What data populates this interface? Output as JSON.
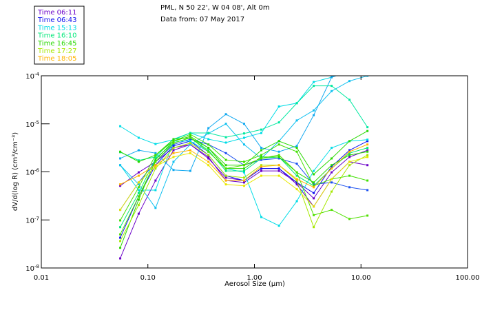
{
  "chart_data": {
    "type": "line",
    "title": "PML, N 50 22', W 04 08', Alt 0m",
    "subtitle": "Data from: 07 May 2017",
    "xlabel": "Aerosol Size (µm)",
    "ylabel": "dV/d(log R) (cm³/cm⁻³)",
    "xscale": "log",
    "yscale": "log",
    "xlim": [
      0.01,
      100
    ],
    "ylim": [
      1e-08,
      0.0001
    ],
    "x_ticks": [
      "0.01",
      "0.10",
      "1.00",
      "10.00",
      "100.00"
    ],
    "x_tick_values": [
      0.01,
      0.1,
      1,
      10,
      100
    ],
    "y_ticks": [
      {
        "base": "10",
        "exp": "-4",
        "value_log10": -4
      },
      {
        "base": "10",
        "exp": "-5",
        "value_log10": -5
      },
      {
        "base": "10",
        "exp": "-6",
        "value_log10": -6
      },
      {
        "base": "10",
        "exp": "-7",
        "value_log10": -7
      },
      {
        "base": "10",
        "exp": "-8",
        "value_log10": -8
      }
    ],
    "legend_position": "top-left, outside plot",
    "legend": [
      {
        "label": "Time 06:11",
        "color": "#6a00c8"
      },
      {
        "label": "Time 06:43",
        "color": "#1010f0"
      },
      {
        "label": "Time 15:13",
        "color": "#00dce6"
      },
      {
        "label": "Time 16:10",
        "color": "#00e87a"
      },
      {
        "label": "Time 16:45",
        "color": "#28d800"
      },
      {
        "label": "Time 17:27",
        "color": "#a6e800"
      },
      {
        "label": "Time 18:05",
        "color": "#ffb400"
      }
    ],
    "x": [
      0.055,
      0.082,
      0.118,
      0.174,
      0.25,
      0.37,
      0.54,
      0.8,
      1.16,
      1.7,
      2.5,
      3.6,
      5.3,
      7.8,
      11.5
    ],
    "series_note": "values given as log10 of dV/d(log R)",
    "series": [
      {
        "name": "06:11 a",
        "color": "#6a00c8",
        "log10_values": [
          -7.8,
          -6.87,
          -6.18,
          -5.55,
          -5.43,
          -5.69,
          -6.18,
          -6.22,
          -5.98,
          -5.98,
          -6.22,
          -6.55,
          -6.01,
          -5.69,
          -5.55
        ]
      },
      {
        "name": "06:11 b",
        "color": "#6a00c8",
        "log10_values": [
          -6.29,
          -6.01,
          -5.79,
          -5.5,
          -5.43,
          -5.72,
          -6.12,
          -6.18,
          -5.93,
          -5.93,
          -6.26,
          -6.72,
          -6.15,
          -5.79,
          -5.86
        ]
      },
      {
        "name": "06:43 a",
        "color": "#1010f0",
        "log10_values": [
          -7.37,
          -6.51,
          -5.86,
          -5.46,
          -5.36,
          -5.65,
          -6.08,
          -6.18,
          -5.93,
          -5.93,
          -6.22,
          -6.44,
          -5.89,
          -5.55,
          -5.36
        ]
      },
      {
        "name": "06:43 b",
        "color": "#1a50f0",
        "log10_values": [
          -6.79,
          -6.22,
          -5.79,
          -5.43,
          -5.32,
          -5.43,
          -5.61,
          -5.86,
          -5.75,
          -5.72,
          -5.83,
          -6.26,
          -6.22,
          -6.32,
          -6.38
        ]
      },
      {
        "name": "15:13 a",
        "color": "#00dce6",
        "log10_values": [
          -5.05,
          -5.29,
          -5.42,
          -5.33,
          -5.19,
          -5.32,
          -5.39,
          -5.29,
          -5.19,
          -4.64,
          -4.57,
          -4.13,
          -4.03,
          -3.9,
          -3.8
        ]
      },
      {
        "name": "15:13 b",
        "color": "#00dce6",
        "log10_values": [
          -5.86,
          -6.38,
          -6.38,
          -5.36,
          -5.36,
          -5.58,
          -5.93,
          -6.01,
          -6.94,
          -7.12,
          -6.61,
          -5.98,
          -5.5,
          -5.36,
          -5.33
        ]
      },
      {
        "name": "15:13 c",
        "color": "#10a8f0",
        "log10_values": [
          -5.72,
          -5.55,
          -5.61,
          -5.96,
          -5.98,
          -5.09,
          -4.8,
          -5.0,
          -5.5,
          -5.58,
          -5.46,
          -4.82,
          -4.03,
          -3.91,
          -3.8
        ]
      },
      {
        "name": "15:13 d",
        "color": "#10c0f0",
        "log10_values": [
          -5.86,
          -6.26,
          -6.75,
          -5.79,
          -5.43,
          -5.2,
          -5.0,
          -5.43,
          -5.72,
          -5.36,
          -4.93,
          -4.72,
          -4.32,
          -4.11,
          -4.0
        ]
      },
      {
        "name": "16:10 a",
        "color": "#00e8a0",
        "log10_values": [
          -5.59,
          -5.76,
          -5.69,
          -5.32,
          -5.19,
          -5.19,
          -5.28,
          -5.2,
          -5.12,
          -4.97,
          -4.57,
          -4.21,
          -4.21,
          -4.5,
          -5.07
        ]
      },
      {
        "name": "16:10 b",
        "color": "#00e87a",
        "log10_values": [
          -7.15,
          -6.44,
          -5.72,
          -5.4,
          -5.29,
          -5.55,
          -5.98,
          -5.98,
          -5.72,
          -5.69,
          -6.08,
          -6.29,
          -5.93,
          -5.61,
          -5.5
        ]
      },
      {
        "name": "16:45 a",
        "color": "#28d800",
        "log10_values": [
          -5.58,
          -5.79,
          -5.65,
          -5.32,
          -5.29,
          -5.5,
          -5.86,
          -5.86,
          -5.55,
          -5.36,
          -5.5,
          -6.05,
          -5.72,
          -5.36,
          -5.15
        ]
      },
      {
        "name": "16:45 b",
        "color": "#28d800",
        "log10_values": [
          -7.58,
          -6.58,
          -5.75,
          -5.36,
          -5.26,
          -5.5,
          -5.93,
          -5.93,
          -5.69,
          -5.69,
          -6.01,
          -6.22,
          -5.86,
          -5.65,
          -5.58
        ]
      },
      {
        "name": "16:45 c",
        "color": "#40e000",
        "log10_values": [
          -7.01,
          -6.32,
          -5.65,
          -5.36,
          -5.22,
          -5.43,
          -5.75,
          -5.79,
          -5.65,
          -5.43,
          -5.58,
          -6.29,
          -6.15,
          -6.08,
          -6.18
        ]
      },
      {
        "name": "16:45 d",
        "color": "#50e000",
        "log10_values": [
          -7.3,
          -6.51,
          -5.79,
          -5.4,
          -5.29,
          -5.58,
          -5.93,
          -5.86,
          -5.72,
          -5.65,
          -6.01,
          -6.9,
          -6.79,
          -6.98,
          -6.91
        ]
      },
      {
        "name": "17:27 a",
        "color": "#a6e800",
        "log10_values": [
          -7.44,
          -6.69,
          -5.93,
          -5.5,
          -5.4,
          -5.65,
          -6.08,
          -6.12,
          -5.86,
          -5.86,
          -6.18,
          -7.15,
          -6.41,
          -5.86,
          -5.65
        ]
      },
      {
        "name": "17:27 b",
        "color": "#e8e800",
        "log10_values": [
          -6.79,
          -6.22,
          -5.89,
          -5.69,
          -5.61,
          -5.86,
          -6.26,
          -6.29,
          -6.08,
          -6.08,
          -6.36,
          -6.72,
          -6.15,
          -5.79,
          -5.69
        ]
      },
      {
        "name": "18:05 a",
        "color": "#ffb400",
        "log10_values": [
          -6.26,
          -6.08,
          -5.86,
          -5.61,
          -5.55,
          -5.79,
          -6.18,
          -6.18,
          -5.89,
          -5.86,
          -6.15,
          -6.32,
          -5.93,
          -5.58,
          -5.43
        ]
      }
    ]
  }
}
